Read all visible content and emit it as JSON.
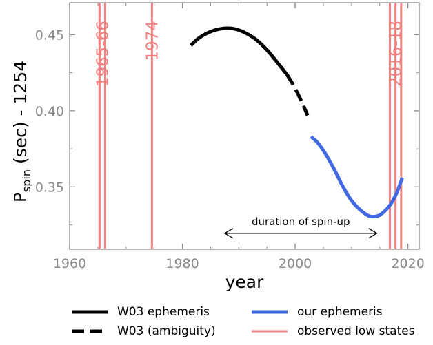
{
  "chart_data": {
    "type": "line",
    "xlabel": "year",
    "ylabel": {
      "prefix": "P",
      "subscript": "spin",
      "suffix": " (sec) - 1254"
    },
    "xlim": [
      1960,
      2022
    ],
    "ylim": [
      0.309,
      0.471
    ],
    "xticks": [
      1960,
      1980,
      2000,
      2020
    ],
    "xtick_labels": [
      "1960",
      "1980",
      "2000",
      "2020"
    ],
    "yticks": [
      0.35,
      0.4,
      0.45
    ],
    "ytick_labels": [
      "0.35",
      "0.40",
      "0.45"
    ],
    "grid": false,
    "legend_position": "below",
    "series": [
      {
        "name": "W03 ephemeris",
        "color": "#000000",
        "style": "solid",
        "x": [
          1981.5,
          1983,
          1985,
          1987,
          1989,
          1991,
          1993,
          1995,
          1997,
          1998.5
        ],
        "y": [
          0.443,
          0.448,
          0.452,
          0.454,
          0.454,
          0.4515,
          0.447,
          0.44,
          0.431,
          0.424
        ]
      },
      {
        "name": "W03 (ambiguity)",
        "color": "#000000",
        "style": "dashed",
        "x": [
          1998.5,
          1999.5,
          2000.5,
          2001.5,
          2002.2
        ],
        "y": [
          0.424,
          0.418,
          0.411,
          0.403,
          0.397
        ]
      },
      {
        "name": "our ephemeris",
        "color": "#4169e1",
        "style": "solid",
        "x": [
          2002.8,
          2004,
          2005.5,
          2007,
          2008.5,
          2010,
          2011.5,
          2013,
          2014,
          2015,
          2016,
          2017,
          2018,
          2019
        ],
        "y": [
          0.383,
          0.379,
          0.371,
          0.361,
          0.35,
          0.341,
          0.335,
          0.331,
          0.3305,
          0.3315,
          0.3345,
          0.339,
          0.346,
          0.356
        ]
      }
    ],
    "low_states": {
      "name": "observed low states",
      "color": "#f08080",
      "years": [
        1965.3,
        1966.3,
        1974.6,
        2016.8,
        2017.8,
        2018.8
      ],
      "labels": [
        {
          "text": "1965-66",
          "x": 1965.8
        },
        {
          "text": "1974",
          "x": 1974.6
        },
        {
          "text": "2016-18",
          "x": 2017.8
        }
      ]
    },
    "annotation": {
      "text": "duration of spin-up",
      "x_start": 1987.5,
      "x_end": 2014.5,
      "y": 0.3195
    }
  }
}
